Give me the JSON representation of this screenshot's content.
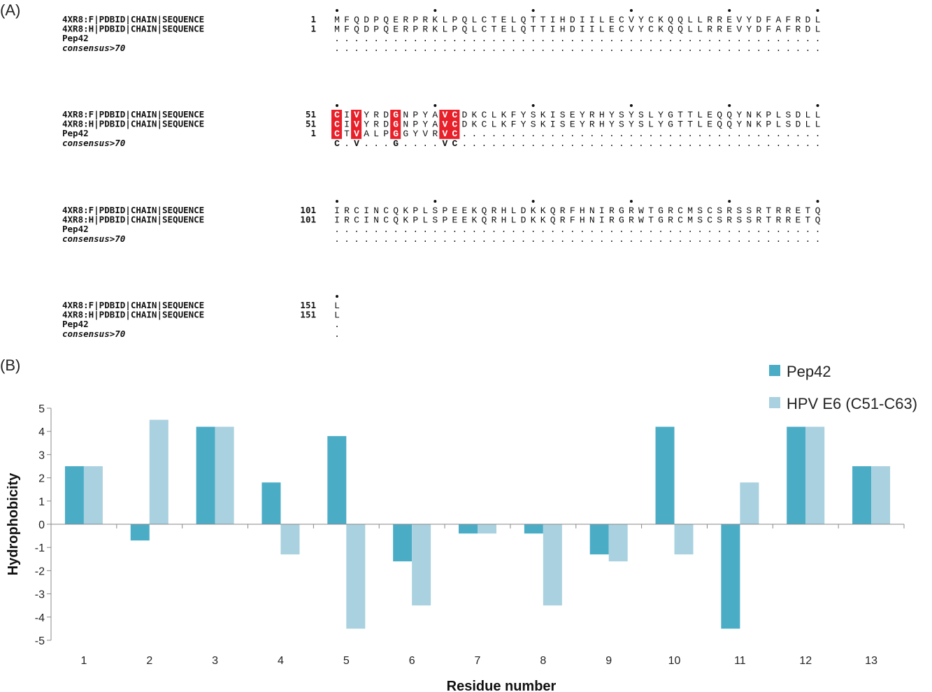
{
  "panel_a": {
    "label": "(A)",
    "cons_threshold": 0.7,
    "blocks": [
      {
        "rows": [
          {
            "name": "4XR8:F|PDBID|CHAIN|SEQUENCE",
            "num": "1",
            "seq": "MFQDPQERPRKLPQLCTELQTTIHDIILECVYCKQQLLRREVYDFAFRDL"
          },
          {
            "name": "4XR8:H|PDBID|CHAIN|SEQUENCE",
            "num": "1",
            "seq": "MFQDPQERPRKLPQLCTELQTTIHDIILECVYCKQQLLRREVYDFAFRDL"
          },
          {
            "name": "Pep42",
            "num": "",
            "seq": ".................................................."
          },
          {
            "name": "consensus>70",
            "num": "",
            "seq": ".................................................."
          }
        ]
      },
      {
        "rows": [
          {
            "name": "4XR8:F|PDBID|CHAIN|SEQUENCE",
            "num": "51",
            "seq": "CIVYRDGNPYAVCDKCLKFYSKISEYRHYSYSLYGTTLEQQYNKPLSDLL"
          },
          {
            "name": "4XR8:H|PDBID|CHAIN|SEQUENCE",
            "num": "51",
            "seq": "CIVYRDGNPYAVCDKCLKFYSKISEYRHYSYSLYGTTLEQQYNKPLSDLL"
          },
          {
            "name": "Pep42",
            "num": "1",
            "seq": "CTVALPGGYVRVC....................................."
          },
          {
            "name": "consensus>70",
            "num": "",
            "seq": "C.V...G....VC....................................."
          }
        ]
      },
      {
        "rows": [
          {
            "name": "4XR8:F|PDBID|CHAIN|SEQUENCE",
            "num": "101",
            "seq": "IRCINCQKPLSPEEKQRHLDKKQRFHNIRGRWTGRCMSCSRSSRTRRETQ"
          },
          {
            "name": "4XR8:H|PDBID|CHAIN|SEQUENCE",
            "num": "101",
            "seq": "IRCINCQKPLSPEEKQRHLDKKQRFHNIRGRWTGRCMSCSRSSRTRRETQ"
          },
          {
            "name": "Pep42",
            "num": "",
            "seq": ".................................................."
          },
          {
            "name": "consensus>70",
            "num": "",
            "seq": ".................................................."
          }
        ]
      },
      {
        "rows": [
          {
            "name": "4XR8:F|PDBID|CHAIN|SEQUENCE",
            "num": "151",
            "seq": "L"
          },
          {
            "name": "4XR8:H|PDBID|CHAIN|SEQUENCE",
            "num": "151",
            "seq": "L"
          },
          {
            "name": "Pep42",
            "num": "",
            "seq": "."
          },
          {
            "name": "consensus>70",
            "num": "",
            "seq": "."
          }
        ]
      }
    ],
    "highlight_color": "#e8202a"
  },
  "panel_b": {
    "label": "(B)"
  },
  "chart_data": {
    "type": "bar",
    "title": "",
    "xlabel": "Residue number",
    "ylabel": "Hydrophobicity",
    "ylim": [
      -5,
      5
    ],
    "yticks": [
      5,
      4,
      3,
      2,
      1,
      0,
      -1,
      -2,
      -3,
      -4,
      -5
    ],
    "categories": [
      "1",
      "2",
      "3",
      "4",
      "5",
      "6",
      "7",
      "8",
      "9",
      "10",
      "11",
      "12",
      "13"
    ],
    "series": [
      {
        "name": "Pep42",
        "color": "#4bacc6",
        "values": [
          2.5,
          -0.7,
          4.2,
          1.8,
          3.8,
          -1.6,
          -0.4,
          -0.4,
          -1.3,
          4.2,
          -4.5,
          4.2,
          2.5
        ]
      },
      {
        "name": "HPV E6 (C51-C63)",
        "color": "#a9d1df",
        "values": [
          2.5,
          4.5,
          4.2,
          -1.3,
          -4.5,
          -3.5,
          -0.4,
          -3.5,
          -1.6,
          -1.3,
          1.8,
          4.2,
          2.5
        ]
      }
    ],
    "grid": false,
    "legend_position": "top-right"
  }
}
